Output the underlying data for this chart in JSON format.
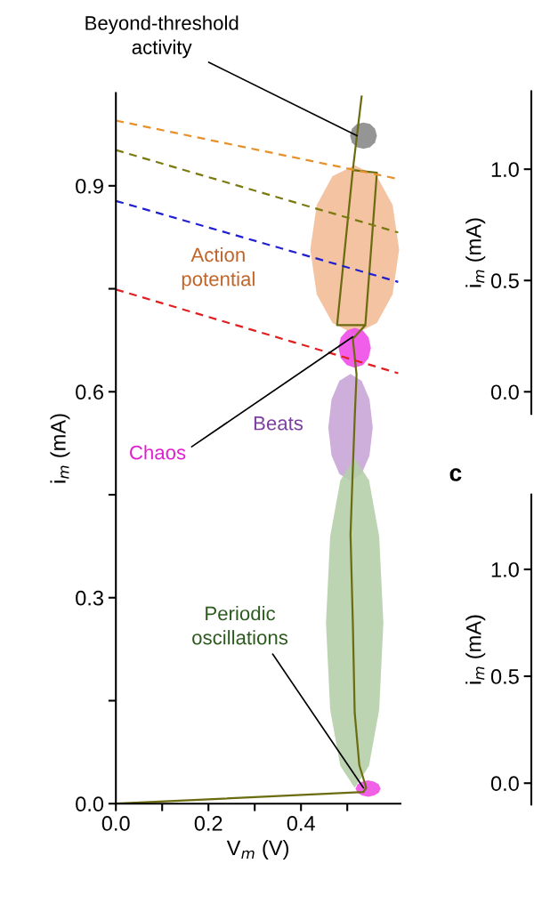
{
  "chart_data": [
    {
      "type": "line",
      "xlabel": "V$_{m}$ (V)",
      "ylabel": "i$_{m}$ (mA)",
      "xlim": [
        0,
        0.615
      ],
      "ylim": [
        0,
        1.035
      ],
      "xticks": [
        {
          "value": 0.0,
          "label": "0.0"
        },
        {
          "value": 0.1,
          "label": null
        },
        0.2,
        {
          "value": 0.3,
          "label": null
        },
        0.4,
        {
          "value": 0.5,
          "label": null
        }
      ],
      "yticks": [
        {
          "value": 0.0,
          "label": "0.0"
        },
        {
          "value": 0.15,
          "label": null
        },
        0.3,
        {
          "value": 0.45,
          "label": null
        },
        0.6,
        {
          "value": 0.75,
          "label": null
        },
        0.9
      ],
      "grid": false,
      "series": [
        {
          "type": "area",
          "color": "#f2bc98",
          "x": [
            0.42,
            0.434,
            0.468,
            0.516,
            0.564,
            0.598,
            0.612
          ],
          "values": [
            null,
            null,
            null,
            null,
            null,
            null,
            null
          ],
          "lower": [
            0.807,
            0.742,
            0.7,
            0.684,
            0.7,
            0.742,
            0.807
          ],
          "upper": [
            0.807,
            0.872,
            0.914,
            0.93,
            0.914,
            0.872,
            0.807
          ]
        },
        {
          "type": "area",
          "color": "#8a8a8a",
          "x": [
            0.506,
            0.51,
            0.521,
            0.535,
            0.549,
            0.56,
            0.564
          ],
          "values": [
            null,
            null,
            null,
            null,
            null,
            null,
            null
          ],
          "lower": [
            0.973,
            0.963,
            0.956,
            0.954,
            0.956,
            0.963,
            0.973
          ],
          "upper": [
            0.973,
            0.983,
            0.99,
            0.992,
            0.99,
            0.983,
            0.973
          ]
        },
        {
          "type": "area",
          "color": "#f04ee8",
          "x": [
            0.481,
            0.486,
            0.499,
            0.516,
            0.534,
            0.546,
            0.551
          ],
          "values": [
            null,
            null,
            null,
            null,
            null,
            null,
            null
          ],
          "lower": [
            0.664,
            0.649,
            0.639,
            0.635,
            0.639,
            0.649,
            0.664
          ],
          "upper": [
            0.664,
            0.679,
            0.689,
            0.693,
            0.689,
            0.679,
            0.664
          ]
        },
        {
          "type": "area",
          "color": "#c9a5d6",
          "x": [
            0.459,
            0.466,
            0.483,
            0.507,
            0.531,
            0.548,
            0.555
          ],
          "values": [
            null,
            null,
            null,
            null,
            null,
            null,
            null
          ],
          "lower": [
            0.548,
            0.507,
            0.48,
            0.47,
            0.48,
            0.507,
            0.548
          ],
          "upper": [
            0.548,
            0.589,
            0.616,
            0.626,
            0.616,
            0.589,
            0.548
          ]
        },
        {
          "type": "area",
          "color": "#b5cfa8",
          "x": [
            0.454,
            0.463,
            0.485,
            0.516,
            0.547,
            0.569,
            0.578
          ],
          "values": [
            null,
            null,
            null,
            null,
            null,
            null,
            null
          ],
          "lower": [
            0.263,
            0.137,
            0.055,
            0.023,
            0.055,
            0.137,
            0.263
          ],
          "upper": [
            0.263,
            0.389,
            0.471,
            0.503,
            0.471,
            0.389,
            0.263
          ]
        },
        {
          "type": "area",
          "color": "#f050e6",
          "x": [
            0.518,
            0.522,
            0.532,
            0.545,
            0.558,
            0.568,
            0.572
          ],
          "values": [
            null,
            null,
            null,
            null,
            null,
            null,
            null
          ],
          "lower": [
            0.022,
            0.016,
            0.012,
            0.01,
            0.012,
            0.016,
            0.022
          ],
          "upper": [
            0.022,
            0.028,
            0.032,
            0.034,
            0.032,
            0.028,
            0.022
          ]
        },
        {
          "type": "line",
          "color": "#6b6b10",
          "line_style": "solid",
          "x": [
            0,
            0.535,
            0.541,
            0.526,
            0.516,
            0.512,
            0.507,
            0.511,
            0.516,
            0.52,
            0.512,
            0.539,
            0.478,
            0.512,
            0.564,
            0.539
          ],
          "values": [
            0,
            0.017,
            0.023,
            0.056,
            0.133,
            0.263,
            0.392,
            0.47,
            0.561,
            0.625,
            0.677,
            0.697,
            0.697,
            0.923,
            0.919,
            0.697
          ]
        },
        {
          "type": "line",
          "color": "#6b6b10",
          "line_style": "solid",
          "x": [
            0.512,
            0.531
          ],
          "values": [
            0.923,
            1.03
          ]
        },
        {
          "type": "line",
          "color": "#e8902a",
          "line_style": "dashed",
          "x": [
            0,
            0.61
          ],
          "values": [
            0.995,
            0.91
          ]
        },
        {
          "type": "line",
          "color": "#7a7a10",
          "line_style": "dashed",
          "x": [
            0,
            0.61
          ],
          "values": [
            0.952,
            0.832
          ]
        },
        {
          "type": "line",
          "color": "#2020d0",
          "line_style": "dashed",
          "x": [
            0,
            0.61
          ],
          "values": [
            0.878,
            0.76
          ]
        },
        {
          "type": "line",
          "color": "#e02020",
          "line_style": "dashed",
          "x": [
            0,
            0.61
          ],
          "values": [
            0.749,
            0.627
          ]
        }
      ],
      "annotations": [
        {
          "text": "Beyond-threshold\nactivity",
          "x": 0.521,
          "y": 0.973
        },
        "Action\npotential",
        "Beats",
        {
          "text": "Chaos",
          "x": 0.512,
          "y": 0.68
        },
        {
          "text": "Periodic\noscillations",
          "x": 0.535,
          "y": 0.023
        }
      ]
    },
    {
      "type": "other",
      "ylabel": "i$_{m}$ (mA)",
      "annotations": [
        "1.0",
        "0.5",
        "0.0"
      ]
    },
    {
      "type": "other",
      "title": "c",
      "ylabel": "i$_{m}$ (mA)",
      "annotations": [
        "1.0",
        "0.5",
        "0.0"
      ]
    }
  ]
}
